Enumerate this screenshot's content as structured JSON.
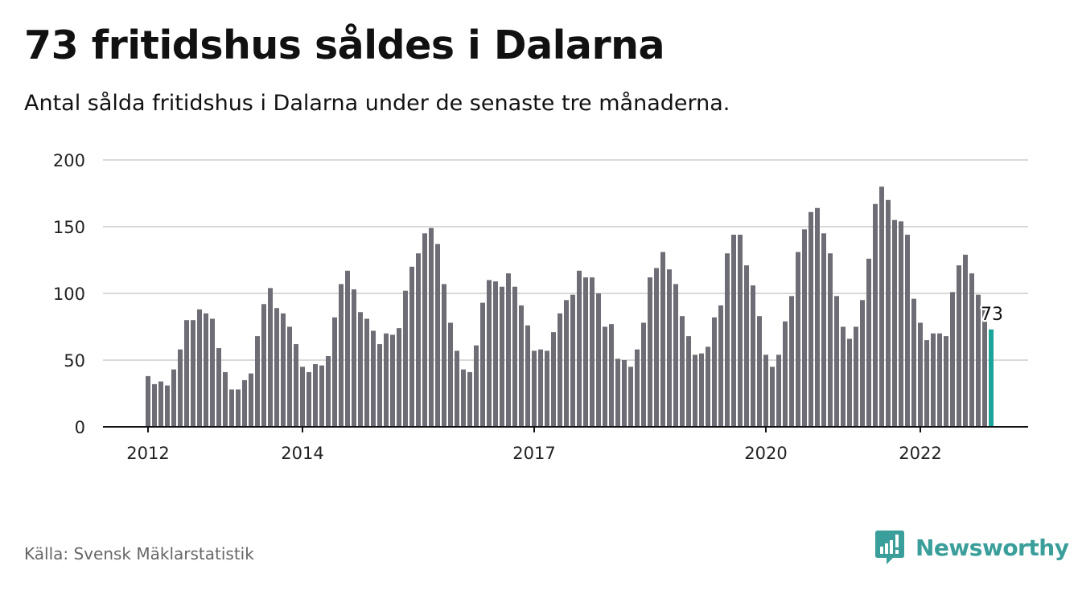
{
  "title": "73 fritidshus såldes i Dalarna",
  "subtitle": "Antal sålda fritidshus i Dalarna under de senaste tre månaderna.",
  "source": "Källa: Svensk Mäklarstatistik",
  "brand": {
    "name": "Newsworthy",
    "color": "#3a9e9a",
    "icon": "newsworthy-logo-icon"
  },
  "colors": {
    "bar": "#6e6d75",
    "highlight": "#1aa59a",
    "grid": "#d9d9d9",
    "axis": "#111111",
    "text": "#111111"
  },
  "chart_data": {
    "type": "bar",
    "title": "73 fritidshus såldes i Dalarna",
    "subtitle": "Antal sålda fritidshus i Dalarna under de senaste tre månaderna.",
    "xlabel": "",
    "ylabel": "",
    "ylim": [
      0,
      200
    ],
    "y_ticks": [
      0,
      50,
      100,
      150,
      200
    ],
    "x_ticks": [
      "2012",
      "2014",
      "2017",
      "2020",
      "2022"
    ],
    "grid": true,
    "legend": "none",
    "highlight_label": "73",
    "series": [
      {
        "values": [
          38,
          32,
          34,
          31,
          43,
          58,
          80,
          80,
          88,
          85,
          81,
          59,
          41,
          28,
          28,
          35,
          40,
          68,
          92,
          104,
          89,
          85,
          75,
          62,
          45,
          41,
          47,
          46,
          53,
          82,
          107,
          117,
          103,
          86,
          81,
          72,
          62,
          70,
          69,
          74,
          102,
          120,
          130,
          145,
          149,
          137,
          107,
          78,
          57,
          43,
          41,
          61,
          93,
          110,
          109,
          105,
          115,
          105,
          91,
          76,
          57,
          58,
          57,
          71,
          85,
          95,
          99,
          117,
          112,
          112,
          100,
          75,
          77,
          51,
          50,
          45,
          58,
          78,
          112,
          119,
          131,
          118,
          107,
          83,
          68,
          54,
          55,
          60,
          82,
          91,
          130,
          144,
          144,
          121,
          106,
          83,
          54,
          45,
          54,
          79,
          98,
          131,
          148,
          161,
          164,
          145,
          130,
          98,
          75,
          66,
          75,
          95,
          126,
          167,
          180,
          170,
          155,
          154,
          144,
          96,
          78,
          65,
          70,
          70,
          68,
          101,
          121,
          129,
          115,
          99,
          88,
          73
        ]
      }
    ]
  }
}
